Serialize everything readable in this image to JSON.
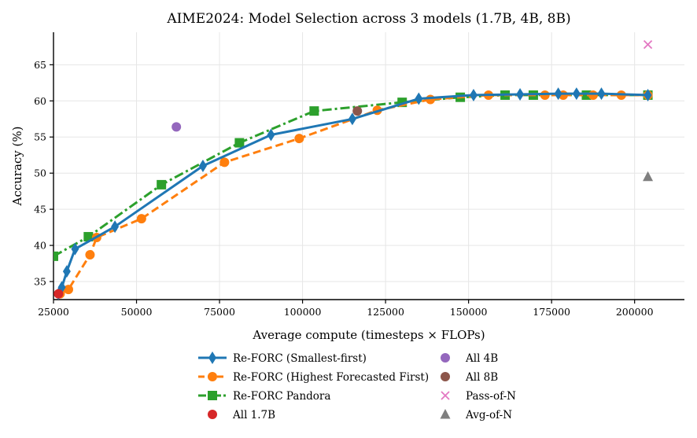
{
  "chart_data": {
    "type": "line",
    "title": "AIME2024: Model Selection across 3 models (1.7B, 4B, 8B)",
    "xlabel": "Average compute (timesteps × FLOPs)",
    "ylabel": "Accuracy (%)",
    "xlim": [
      25000,
      215000
    ],
    "ylim": [
      32.5,
      69.5
    ],
    "xticks": [
      25000,
      50000,
      75000,
      100000,
      125000,
      150000,
      175000,
      200000
    ],
    "yticks": [
      35,
      40,
      45,
      50,
      55,
      60,
      65
    ],
    "grid": true,
    "legend_position": "bottom-center",
    "series": [
      {
        "name": "Re-FORC (Smallest-first)",
        "color": "#1f77b4",
        "style": "solid",
        "marker": "diamond",
        "x": [
          26500,
          27500,
          29000,
          31500,
          43500,
          70000,
          90500,
          115000,
          135000,
          151500,
          165500,
          177000,
          182500,
          190000,
          204000
        ],
        "y": [
          33.3,
          34.2,
          36.4,
          39.5,
          42.6,
          51.0,
          55.3,
          57.5,
          60.3,
          60.8,
          60.9,
          61.0,
          61.0,
          61.0,
          60.8
        ]
      },
      {
        "name": "Re-FORC (Highest Forecasted First)",
        "color": "#ff7f0e",
        "style": "dashed",
        "marker": "circle",
        "x": [
          27000,
          29500,
          36000,
          38000,
          51500,
          76500,
          99000,
          122500,
          138500,
          156000,
          173000,
          178500,
          187500,
          196000,
          204000
        ],
        "y": [
          33.3,
          33.9,
          38.7,
          41.1,
          43.7,
          51.5,
          54.8,
          58.7,
          60.2,
          60.8,
          60.8,
          60.8,
          60.8,
          60.8,
          60.8
        ]
      },
      {
        "name": "Re-FORC Pandora",
        "color": "#2ca02c",
        "style": "dashdot",
        "marker": "square",
        "x": [
          25000,
          35500,
          57500,
          81000,
          103500,
          130000,
          147500,
          161000,
          169500,
          185500,
          204000
        ],
        "y": [
          38.5,
          41.2,
          48.4,
          54.2,
          58.6,
          59.8,
          60.5,
          60.8,
          60.8,
          60.8,
          60.8
        ]
      }
    ],
    "points": [
      {
        "name": "All 1.7B",
        "color": "#d62728",
        "marker": "circle",
        "x": 26500,
        "y": 33.3
      },
      {
        "name": "All 4B",
        "color": "#9467bd",
        "marker": "circle",
        "x": 62000,
        "y": 56.4
      },
      {
        "name": "All 8B",
        "color": "#8c564b",
        "marker": "circle",
        "x": 116500,
        "y": 58.6
      },
      {
        "name": "Pass-of-N",
        "color": "#e377c2",
        "marker": "x",
        "x": 204000,
        "y": 67.8
      },
      {
        "name": "Avg-of-N",
        "color": "#7f7f7f",
        "marker": "triangle",
        "x": 204000,
        "y": 49.5
      }
    ]
  }
}
